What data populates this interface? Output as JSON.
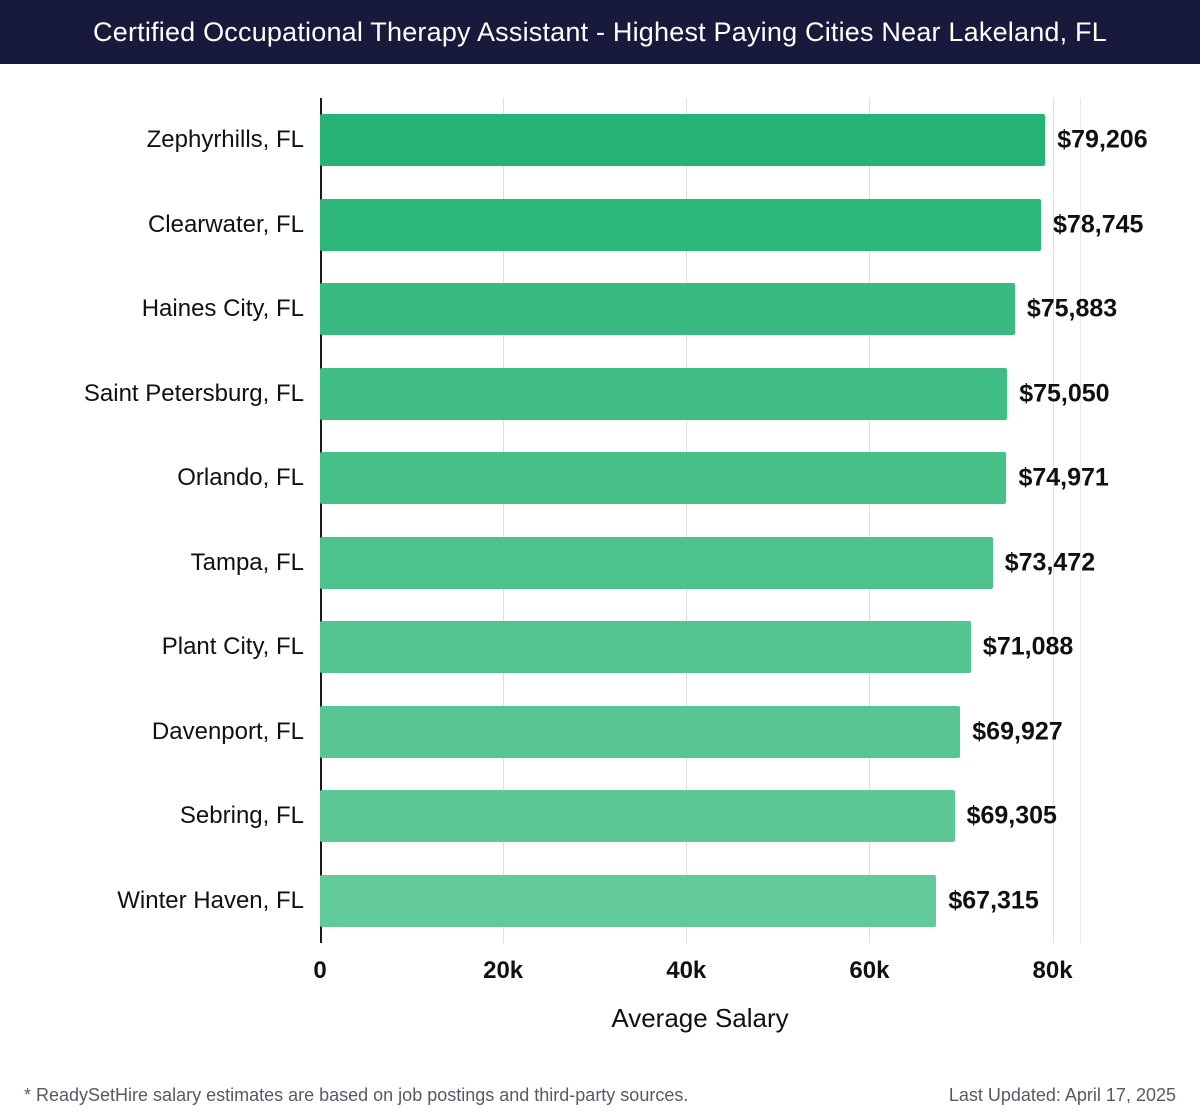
{
  "header": {
    "title": "Certified Occupational Therapy Assistant - Highest Paying Cities Near Lakeland, FL"
  },
  "chart_data": {
    "type": "bar",
    "orientation": "horizontal",
    "title": "Certified Occupational Therapy Assistant - Highest Paying Cities Near Lakeland, FL",
    "categories": [
      "Zephyrhills, FL",
      "Clearwater, FL",
      "Haines City, FL",
      "Saint Petersburg, FL",
      "Orlando, FL",
      "Tampa, FL",
      "Plant City, FL",
      "Davenport, FL",
      "Sebring, FL",
      "Winter Haven, FL"
    ],
    "values": [
      79206,
      78745,
      75883,
      75050,
      74971,
      73472,
      71088,
      69927,
      69305,
      67315
    ],
    "value_labels": [
      "$79,206",
      "$78,745",
      "$75,883",
      "$75,050",
      "$74,971",
      "$73,472",
      "$71,088",
      "$69,927",
      "$69,305",
      "$67,315"
    ],
    "xlabel": "Average Salary",
    "x_ticks": [
      {
        "value": 0,
        "label": "0"
      },
      {
        "value": 20000,
        "label": "20k"
      },
      {
        "value": 40000,
        "label": "40k"
      },
      {
        "value": 60000,
        "label": "60k"
      },
      {
        "value": 80000,
        "label": "80k"
      }
    ],
    "xlim": [
      0,
      83000
    ],
    "grid": true,
    "legend": false
  },
  "colors": {
    "header_bg": "#181a3c",
    "grid": "#dedede",
    "axis": "#1a1a1a",
    "bar_gradient": [
      "#27b376",
      "#2cb67a",
      "#38ba80",
      "#40bd84",
      "#47c088",
      "#4dc28c",
      "#53c490",
      "#58c693",
      "#5dc896",
      "#62ca99"
    ]
  },
  "footer": {
    "note": "* ReadySetHire salary estimates are based on job postings and third-party sources.",
    "updated": "Last Updated: April 17, 2025"
  }
}
